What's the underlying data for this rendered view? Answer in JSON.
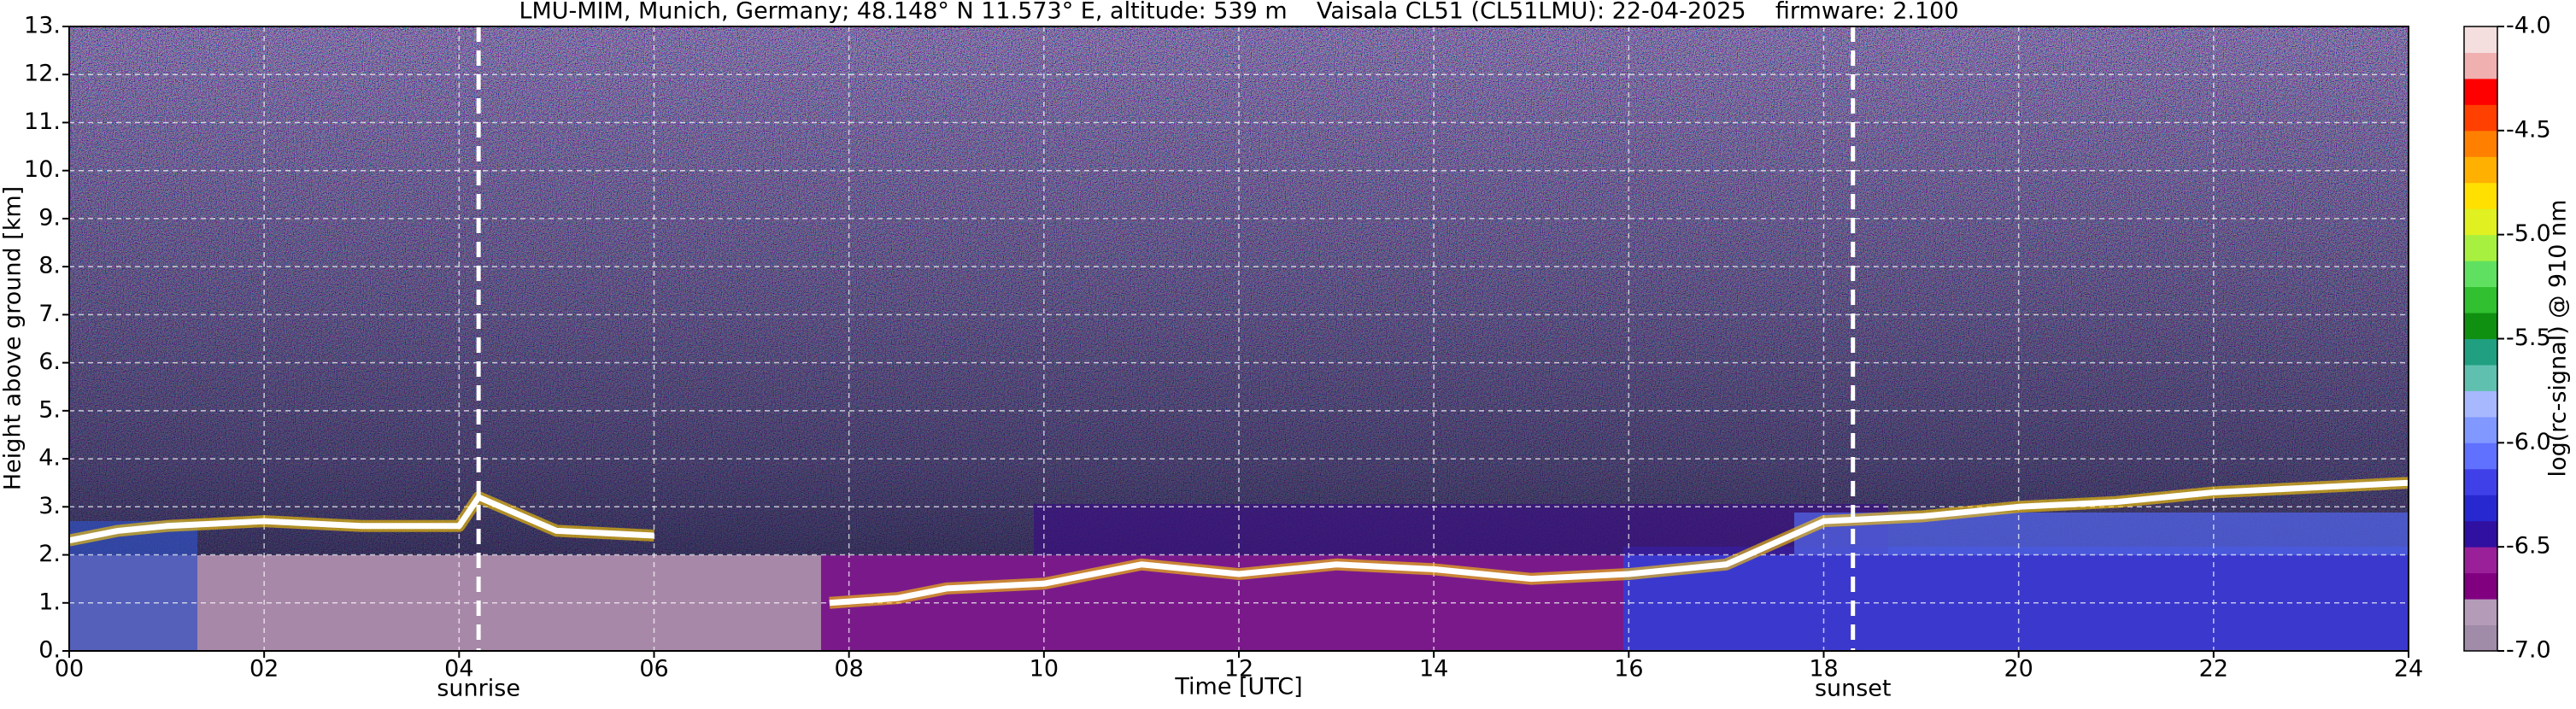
{
  "chart_data": {
    "type": "heatmap",
    "title": "LMU-MIM, Munich, Germany; 48.148° N 11.573° E, altitude: 539 m    Vaisala CL51 (CL51LMU): 22-04-2025    firmware: 2.100",
    "xlabel": "Time [UTC]",
    "ylabel": "Height above ground [km]",
    "xlim": [
      0,
      24
    ],
    "xticks": [
      {
        "value": 0,
        "label": "00"
      },
      {
        "value": 2,
        "label": "02"
      },
      {
        "value": 4,
        "label": "04"
      },
      {
        "value": 6,
        "label": "06"
      },
      {
        "value": 8,
        "label": "08"
      },
      {
        "value": 10,
        "label": "10"
      },
      {
        "value": 12,
        "label": "12"
      },
      {
        "value": 14,
        "label": "14"
      },
      {
        "value": 16,
        "label": "16"
      },
      {
        "value": 18,
        "label": "18"
      },
      {
        "value": 20,
        "label": "20"
      },
      {
        "value": 22,
        "label": "22"
      },
      {
        "value": 24,
        "label": "24"
      }
    ],
    "ylim": [
      0,
      13
    ],
    "yticks": [
      {
        "value": 0,
        "label": "0."
      },
      {
        "value": 1,
        "label": "1."
      },
      {
        "value": 2,
        "label": "2."
      },
      {
        "value": 3,
        "label": "3."
      },
      {
        "value": 4,
        "label": "4."
      },
      {
        "value": 5,
        "label": "5."
      },
      {
        "value": 6,
        "label": "6."
      },
      {
        "value": 7,
        "label": "7."
      },
      {
        "value": 8,
        "label": "8."
      },
      {
        "value": 9,
        "label": "9."
      },
      {
        "value": 10,
        "label": "10."
      },
      {
        "value": 11,
        "label": "11."
      },
      {
        "value": 12,
        "label": "12."
      },
      {
        "value": 13,
        "label": "13."
      }
    ],
    "grid": true,
    "annotations": [
      {
        "label": "sunrise",
        "x": 4.2
      },
      {
        "label": "sunset",
        "x": 18.3
      }
    ],
    "layer": {
      "color": "#ffffff",
      "x": [
        0,
        0.5,
        1,
        2,
        3,
        4,
        4.2,
        5,
        6,
        7,
        7.8,
        8.5,
        9,
        10,
        11,
        12,
        13,
        14,
        15,
        16,
        17,
        18,
        19,
        20,
        21,
        22,
        23,
        24
      ],
      "values": [
        2.3,
        2.5,
        2.6,
        2.7,
        2.6,
        2.6,
        3.2,
        2.5,
        2.4,
        null,
        1.0,
        1.1,
        1.3,
        1.4,
        1.8,
        1.6,
        1.8,
        1.7,
        1.5,
        1.6,
        1.8,
        2.7,
        2.8,
        3.0,
        3.1,
        3.3,
        3.4,
        3.5
      ]
    },
    "colorbar": {
      "label": "log(rc-signal) @ 910 nm",
      "lim": [
        -7,
        -4
      ],
      "ticks": [
        {
          "value": -4,
          "label": "-4.0"
        },
        {
          "value": -4.5,
          "label": "-4.5"
        },
        {
          "value": -5,
          "label": "-5.0"
        },
        {
          "value": -5.5,
          "label": "-5.5"
        },
        {
          "value": -6,
          "label": "-6.0"
        },
        {
          "value": -6.5,
          "label": "-6.5"
        },
        {
          "value": -7,
          "label": "-7.0"
        }
      ],
      "colors": [
        "#a08ca8",
        "#b49cb8",
        "#800080",
        "#9a209a",
        "#3010a0",
        "#2828d0",
        "#4040e8",
        "#6070ff",
        "#8098ff",
        "#a8b8ff",
        "#60c0b0",
        "#20a080",
        "#109010",
        "#30c030",
        "#60e060",
        "#a8f040",
        "#e0f020",
        "#ffe000",
        "#ffb000",
        "#ff8000",
        "#ff4000",
        "#ff0000",
        "#f0b0b0",
        "#f4dede"
      ]
    }
  }
}
